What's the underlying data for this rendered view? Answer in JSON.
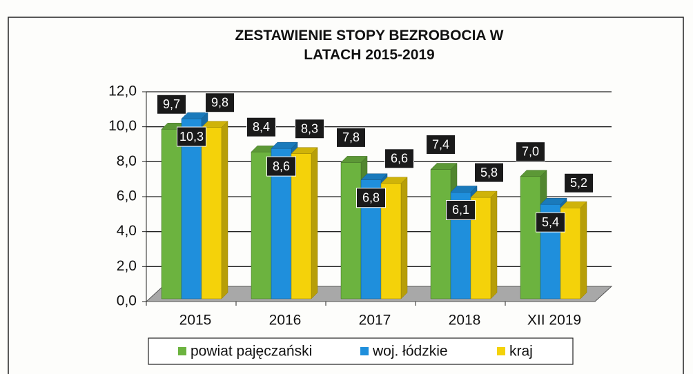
{
  "chart_data": {
    "type": "bar3d",
    "title": "ZESTAWIENIE STOPY BEZROBOCIA W LATACH 2015-2019",
    "categories": [
      "2015",
      "2016",
      "2017",
      "2018",
      "XII 2019"
    ],
    "series": [
      {
        "name": "powiat pajęczański",
        "color": "#6cb33f",
        "values": [
          9.7,
          8.4,
          7.8,
          7.4,
          7.0
        ],
        "value_labels": [
          "9,7",
          "8,4",
          "7,8",
          "7,4",
          "7,0"
        ]
      },
      {
        "name": "woj. łódzkie",
        "color": "#1f8fdc",
        "values": [
          10.3,
          8.6,
          6.8,
          6.1,
          5.4
        ],
        "value_labels": [
          "10,3",
          "8,6",
          "6,8",
          "6,1",
          "5,4"
        ]
      },
      {
        "name": "kraj",
        "color": "#f4d20a",
        "values": [
          9.8,
          8.3,
          6.6,
          5.8,
          5.2
        ],
        "value_labels": [
          "9,8",
          "8,3",
          "6,6",
          "5,8",
          "5,2"
        ]
      }
    ],
    "ylim": [
      0,
      12
    ],
    "yticks": [
      {
        "value": 0,
        "label": "0,0"
      },
      {
        "value": 2,
        "label": "2,0"
      },
      {
        "value": 4,
        "label": "4,0"
      },
      {
        "value": 6,
        "label": "6,0"
      },
      {
        "value": 8,
        "label": "8,0"
      },
      {
        "value": 10,
        "label": "10,0"
      },
      {
        "value": 12,
        "label": "12,0"
      }
    ],
    "grid": true,
    "legend": "bottom"
  }
}
